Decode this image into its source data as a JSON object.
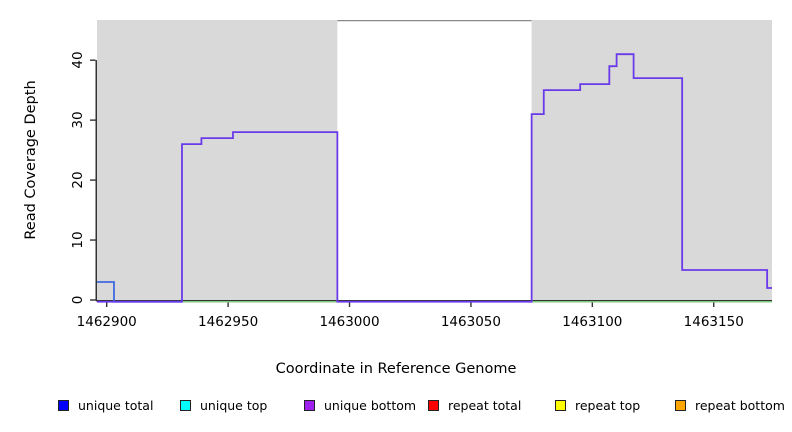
{
  "axes": {
    "x_label": "Coordinate in Reference Genome",
    "y_label": "Read Coverage Depth",
    "x_ticks": [
      1462900,
      1462950,
      1463000,
      1463050,
      1463100,
      1463150
    ],
    "y_ticks": [
      0,
      10,
      20,
      30,
      40
    ]
  },
  "legend": {
    "position": "bottom",
    "items": [
      {
        "label": "unique total",
        "color": "#0000FF"
      },
      {
        "label": "unique top",
        "color": "#00FFFF"
      },
      {
        "label": "unique bottom",
        "color": "#A020F0"
      },
      {
        "label": "repeat total",
        "color": "#FF0000"
      },
      {
        "label": "repeat top",
        "color": "#FFFF00"
      },
      {
        "label": "repeat bottom",
        "color": "#FFA500"
      }
    ]
  },
  "chart_data": {
    "type": "line",
    "subtype": "step-coverage",
    "title": "",
    "xlabel": "Coordinate in Reference Genome",
    "ylabel": "Read Coverage Depth",
    "xlim": [
      1462896,
      1463174
    ],
    "ylim": [
      0,
      46.7
    ],
    "grid": false,
    "shade_color": "#d9d9d9",
    "shaded_regions": [
      [
        1462896,
        1462995
      ],
      [
        1463075,
        1463174
      ]
    ],
    "unshaded_gap": [
      1462995,
      1463075
    ],
    "gap_top_border_color": "#8a8a8a",
    "axis_color": "#333333",
    "series": [
      {
        "name": "zero baseline",
        "color": "#7FC97F",
        "width": 1.6,
        "plateaus": [
          [
            1462896,
            1463174,
            0
          ]
        ]
      },
      {
        "name": "repeat total",
        "color": "#EE4450",
        "width": 1.6,
        "plateaus": [
          [
            1462896,
            1462903,
            0
          ]
        ]
      },
      {
        "name": "unique total",
        "color": "#4169E1",
        "width": 1.8,
        "plateaus": [
          [
            1462896,
            1462903,
            3
          ],
          [
            1462903,
            1462931,
            0
          ]
        ]
      },
      {
        "name": "unique bottom",
        "color": "#6A3AEA",
        "width": 1.8,
        "plateaus": [
          [
            1462896,
            1462931,
            0
          ],
          [
            1462931,
            1462939,
            26
          ],
          [
            1462939,
            1462952,
            27
          ],
          [
            1462952,
            1462995,
            28
          ],
          [
            1462995,
            1463075,
            0
          ],
          [
            1463075,
            1463080,
            31
          ],
          [
            1463080,
            1463095,
            35
          ],
          [
            1463095,
            1463107,
            36
          ],
          [
            1463107,
            1463110,
            39
          ],
          [
            1463110,
            1463117,
            41
          ],
          [
            1463117,
            1463137,
            37
          ],
          [
            1463137,
            1463172,
            5
          ],
          [
            1463172,
            1463174,
            2
          ]
        ]
      }
    ]
  }
}
